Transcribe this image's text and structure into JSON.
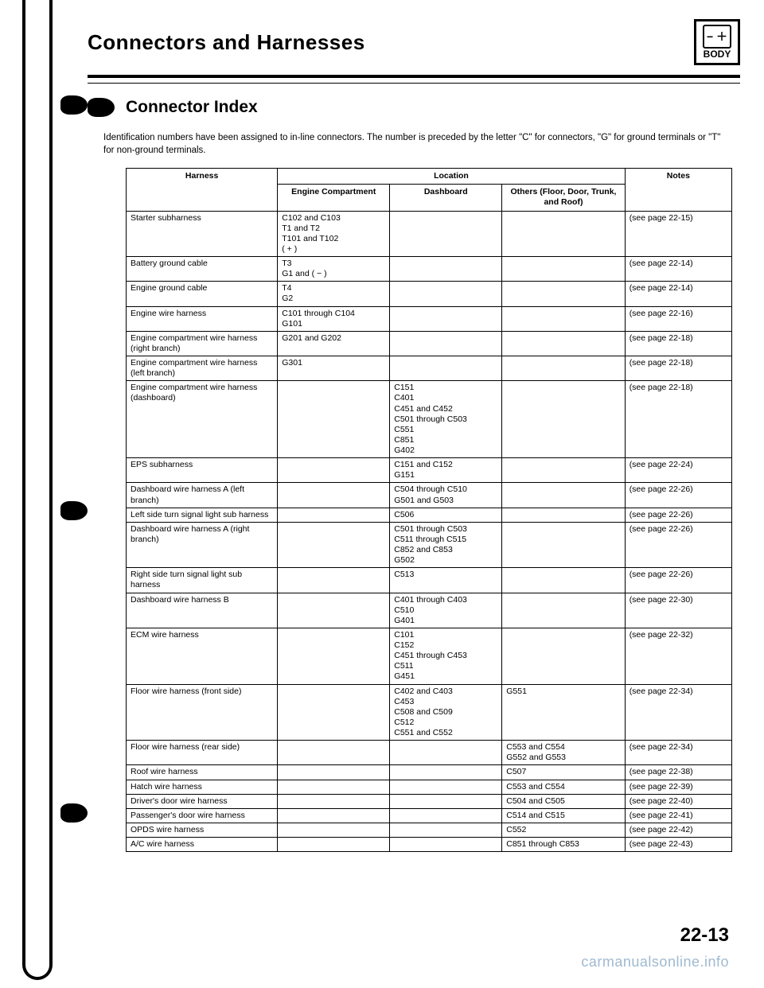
{
  "header": {
    "title": "Connectors and Harnesses",
    "badge_top": "− ＋",
    "badge_label": "BODY"
  },
  "section": {
    "title": "Connector Index",
    "intro": "Identification numbers have been assigned to in-line connectors. The number is preceded by the letter \"C\" for connectors, \"G\" for ground terminals or \"T\" for non-ground terminals."
  },
  "table": {
    "head": {
      "harness": "Harness",
      "location": "Location",
      "engine": "Engine Compartment",
      "dashboard": "Dashboard",
      "others": "Others (Floor, Door, Trunk, and Roof)",
      "notes": "Notes"
    },
    "rows": [
      {
        "h": "Starter subharness",
        "ec": "C102 and C103\nT1 and T2\nT101 and T102\n( + )",
        "db": "",
        "ot": "",
        "n": "(see page 22-15)"
      },
      {
        "h": "Battery ground cable",
        "ec": "T3\nG1 and ( − )",
        "db": "",
        "ot": "",
        "n": "(see page 22-14)"
      },
      {
        "h": "Engine ground cable",
        "ec": "T4\nG2",
        "db": "",
        "ot": "",
        "n": "(see page 22-14)"
      },
      {
        "h": "Engine wire harness",
        "ec": "C101 through C104\nG101",
        "db": "",
        "ot": "",
        "n": "(see page 22-16)"
      },
      {
        "h": "Engine compartment wire harness (right branch)",
        "ec": "G201 and G202",
        "db": "",
        "ot": "",
        "n": "(see page 22-18)"
      },
      {
        "h": "Engine compartment wire harness (left branch)",
        "ec": "G301",
        "db": "",
        "ot": "",
        "n": "(see page 22-18)"
      },
      {
        "h": "Engine compartment wire harness (dashboard)",
        "ec": "",
        "db": "C151\nC401\nC451 and C452\nC501 through C503\nC551\nC851\nG402",
        "ot": "",
        "n": "(see page 22-18)"
      },
      {
        "h": "EPS subharness",
        "ec": "",
        "db": "C151 and C152\nG151",
        "ot": "",
        "n": "(see page 22-24)"
      },
      {
        "h": "Dashboard wire harness A (left branch)",
        "ec": "",
        "db": "C504 through C510\nG501 and G503",
        "ot": "",
        "n": "(see page 22-26)"
      },
      {
        "h": "Left side turn signal light sub harness",
        "ec": "",
        "db": "C506",
        "ot": "",
        "n": "(see page 22-26)"
      },
      {
        "h": "Dashboard wire harness A (right branch)",
        "ec": "",
        "db": "C501 through C503\nC511 through C515\nC852 and C853\nG502",
        "ot": "",
        "n": "(see page 22-26)"
      },
      {
        "h": "Right side turn signal light sub harness",
        "ec": "",
        "db": "C513",
        "ot": "",
        "n": "(see page 22-26)"
      },
      {
        "h": "Dashboard wire harness B",
        "ec": "",
        "db": "C401 through C403\nC510\nG401",
        "ot": "",
        "n": "(see page 22-30)"
      },
      {
        "h": "ECM wire harness",
        "ec": "",
        "db": "C101\nC152\nC451 through C453\nC511\nG451",
        "ot": "",
        "n": "(see page 22-32)"
      },
      {
        "h": "Floor wire harness (front side)",
        "ec": "",
        "db": "C402 and C403\nC453\nC508 and C509\nC512\nC551 and C552",
        "ot": "G551",
        "n": "(see page 22-34)"
      },
      {
        "h": "Floor wire harness (rear side)",
        "ec": "",
        "db": "",
        "ot": "C553 and C554\nG552 and G553",
        "n": "(see page 22-34)"
      },
      {
        "h": "Roof wire harness",
        "ec": "",
        "db": "",
        "ot": "C507",
        "n": "(see page 22-38)"
      },
      {
        "h": "Hatch wire harness",
        "ec": "",
        "db": "",
        "ot": "C553 and C554",
        "n": "(see page 22-39)"
      },
      {
        "h": "Driver's door wire harness",
        "ec": "",
        "db": "",
        "ot": "C504 and C505",
        "n": "(see page 22-40)"
      },
      {
        "h": "Passenger's door wire harness",
        "ec": "",
        "db": "",
        "ot": "C514 and C515",
        "n": "(see page 22-41)"
      },
      {
        "h": "OPDS wire harness",
        "ec": "",
        "db": "",
        "ot": "C552",
        "n": "(see page 22-42)"
      },
      {
        "h": "A/C wire harness",
        "ec": "",
        "db": "",
        "ot": "C851 through C853",
        "n": "(see page 22-43)"
      }
    ]
  },
  "page_number": "22-13",
  "watermark": "carmanualsonline.info"
}
